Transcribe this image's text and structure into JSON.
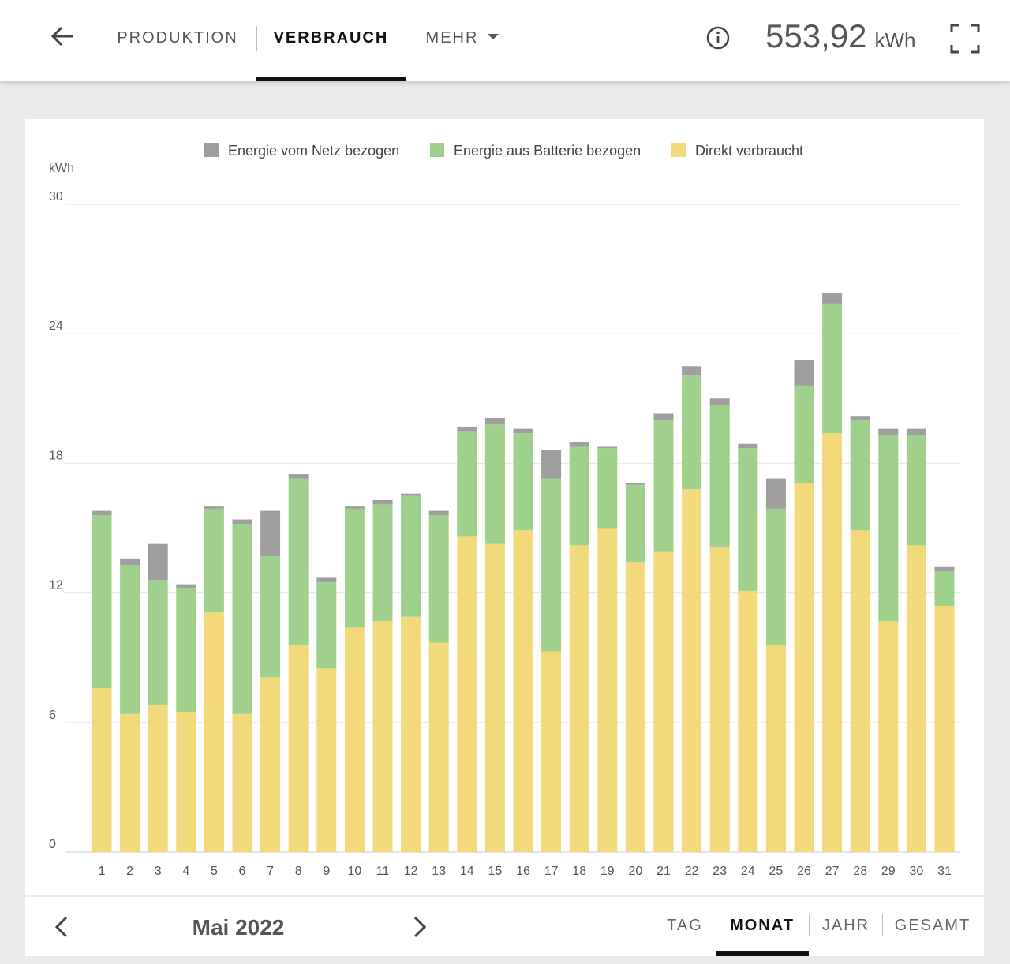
{
  "header": {
    "tabs": [
      {
        "label": "PRODUKTION"
      },
      {
        "label": "VERBRAUCH"
      },
      {
        "label": "MEHR"
      }
    ],
    "total_value": "553,92",
    "total_unit": "kWh"
  },
  "footer": {
    "period": "Mai 2022",
    "range_tabs": [
      {
        "label": "TAG"
      },
      {
        "label": "MONAT"
      },
      {
        "label": "JAHR"
      },
      {
        "label": "GESAMT"
      }
    ]
  },
  "chart_data": {
    "type": "bar",
    "stacked": true,
    "yunit": "kWh",
    "ylim": [
      0,
      30
    ],
    "yticks": [
      "0",
      "6",
      "12",
      "18",
      "24",
      "30"
    ],
    "categories": [
      "1",
      "2",
      "3",
      "4",
      "5",
      "6",
      "7",
      "8",
      "9",
      "10",
      "11",
      "12",
      "13",
      "14",
      "15",
      "16",
      "17",
      "18",
      "19",
      "20",
      "21",
      "22",
      "23",
      "24",
      "25",
      "26",
      "27",
      "28",
      "29",
      "30",
      "31"
    ],
    "series": [
      {
        "name": "Direkt verbraucht",
        "color": "#f2da7a",
        "values": [
          7.6,
          6.4,
          6.8,
          6.5,
          11.1,
          6.4,
          8.1,
          9.6,
          8.5,
          10.4,
          10.7,
          10.9,
          9.7,
          14.6,
          14.3,
          14.9,
          9.3,
          14.2,
          15.0,
          13.4,
          13.9,
          16.8,
          14.1,
          12.1,
          9.6,
          17.1,
          19.4,
          14.9,
          10.7,
          14.2,
          11.4
        ]
      },
      {
        "name": "Energie aus Batterie bezogen",
        "color": "#9fd18c",
        "values": [
          8.0,
          6.9,
          5.8,
          5.7,
          4.8,
          8.8,
          5.6,
          7.7,
          4.0,
          5.5,
          5.4,
          5.6,
          5.9,
          4.9,
          5.5,
          4.5,
          8.0,
          4.6,
          3.7,
          3.6,
          6.1,
          5.3,
          6.6,
          6.6,
          6.3,
          4.5,
          6.0,
          5.1,
          8.6,
          5.1,
          1.6
        ]
      },
      {
        "name": "Energie vom Netz bezogen",
        "color": "#9e9e9e",
        "values": [
          0.2,
          0.3,
          1.7,
          0.2,
          0.1,
          0.2,
          2.1,
          0.2,
          0.2,
          0.1,
          0.2,
          0.1,
          0.2,
          0.2,
          0.3,
          0.2,
          1.3,
          0.2,
          0.1,
          0.1,
          0.3,
          0.4,
          0.3,
          0.2,
          1.4,
          1.2,
          0.5,
          0.2,
          0.3,
          0.3,
          0.2
        ]
      }
    ]
  },
  "legend_order": [
    {
      "name": "Energie vom Netz bezogen",
      "color": "#9e9e9e"
    },
    {
      "name": "Energie aus Batterie bezogen",
      "color": "#9fd18c"
    },
    {
      "name": "Direkt verbraucht",
      "color": "#f2da7a"
    }
  ]
}
